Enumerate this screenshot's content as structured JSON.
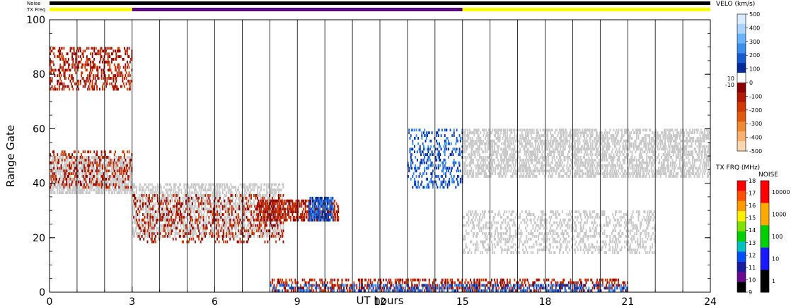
{
  "chart_data": {
    "type": "heatmap",
    "title": "",
    "xlabel": "UT hours",
    "ylabel": "Range Gate",
    "xlim": [
      0,
      24
    ],
    "ylim": [
      0,
      100
    ],
    "x_ticks": [
      "0",
      "3",
      "6",
      "9",
      "12",
      "15",
      "18",
      "21",
      "24"
    ],
    "y_ticks": [
      "0",
      "20",
      "40",
      "60",
      "80",
      "100"
    ],
    "top_bars": {
      "noise_label": "Noise",
      "txfreq_label": "TX Freq",
      "noise_color": "#000000",
      "txfreq_segments": [
        {
          "start": 0,
          "end": 3,
          "color": "#ffff00"
        },
        {
          "start": 3,
          "end": 15,
          "color": "#5a0a80"
        },
        {
          "start": 15,
          "end": 24,
          "color": "#ffff00"
        }
      ]
    },
    "velocity_colorbar": {
      "title": "VELO (km/s)",
      "tick_labels": [
        "500",
        "400",
        "300",
        "200",
        "100",
        "0",
        "-100",
        "-200",
        "-300",
        "-400",
        "-500"
      ],
      "zero_band_labels": [
        "10",
        "-10"
      ],
      "colors": [
        "#d8ecff",
        "#a8d4ff",
        "#6ab4ff",
        "#3a8ef0",
        "#1a5ad0",
        "#002a9a",
        "#ffffff",
        "#8a0000",
        "#b01a00",
        "#d03a00",
        "#e05a10",
        "#f08a30",
        "#f8b070",
        "#fcd8b0"
      ],
      "ground_scatter_color": "#c8c8c8"
    },
    "txfreq_colorbar": {
      "title": "TX FRQ (MHz)",
      "tick_labels": [
        "18",
        "17",
        "16",
        "15",
        "14",
        "13",
        "12",
        "11",
        "10",
        "9"
      ],
      "colors": [
        "#ff0000",
        "#ff5000",
        "#ff9a00",
        "#ffee00",
        "#80e000",
        "#00d000",
        "#00c0c0",
        "#0050ff",
        "#1a1aa0",
        "#6a0a90",
        "#000000"
      ]
    },
    "noise_colorbar": {
      "title": "NOISE",
      "tick_labels": [
        "10000",
        "1000",
        "100",
        "10",
        "1"
      ],
      "colors": [
        "#ff0000",
        "#ffaa00",
        "#00d000",
        "#1a1aff",
        "#000000"
      ]
    },
    "echo_regions": [
      {
        "x0": 0.0,
        "x1": 3.0,
        "y0": 36,
        "y1": 50,
        "kind": "ground",
        "density": 0.6
      },
      {
        "x0": 0.0,
        "x1": 3.0,
        "y0": 38,
        "y1": 52,
        "kind": "neg",
        "density": 0.25
      },
      {
        "x0": 0.0,
        "x1": 3.0,
        "y0": 74,
        "y1": 90,
        "kind": "neg",
        "density": 0.3
      },
      {
        "x0": 3.0,
        "x1": 8.5,
        "y0": 20,
        "y1": 40,
        "kind": "ground",
        "density": 0.45
      },
      {
        "x0": 3.0,
        "x1": 8.5,
        "y0": 18,
        "y1": 36,
        "kind": "neg",
        "density": 0.2
      },
      {
        "x0": 7.5,
        "x1": 10.5,
        "y0": 26,
        "y1": 34,
        "kind": "neg",
        "density": 0.55
      },
      {
        "x0": 9.4,
        "x1": 10.3,
        "y0": 26,
        "y1": 35,
        "kind": "pos",
        "density": 0.7
      },
      {
        "x0": 13.0,
        "x1": 15.0,
        "y0": 38,
        "y1": 60,
        "kind": "pos",
        "density": 0.25
      },
      {
        "x0": 15.0,
        "x1": 24.0,
        "y0": 42,
        "y1": 60,
        "kind": "ground",
        "density": 0.5
      },
      {
        "x0": 15.0,
        "x1": 22.0,
        "y0": 14,
        "y1": 30,
        "kind": "ground",
        "density": 0.3
      },
      {
        "x0": 8.0,
        "x1": 21.0,
        "y0": 0,
        "y1": 5,
        "kind": "neg",
        "density": 0.35
      },
      {
        "x0": 8.0,
        "x1": 21.0,
        "y0": 0,
        "y1": 3,
        "kind": "pos",
        "density": 0.3
      }
    ]
  }
}
